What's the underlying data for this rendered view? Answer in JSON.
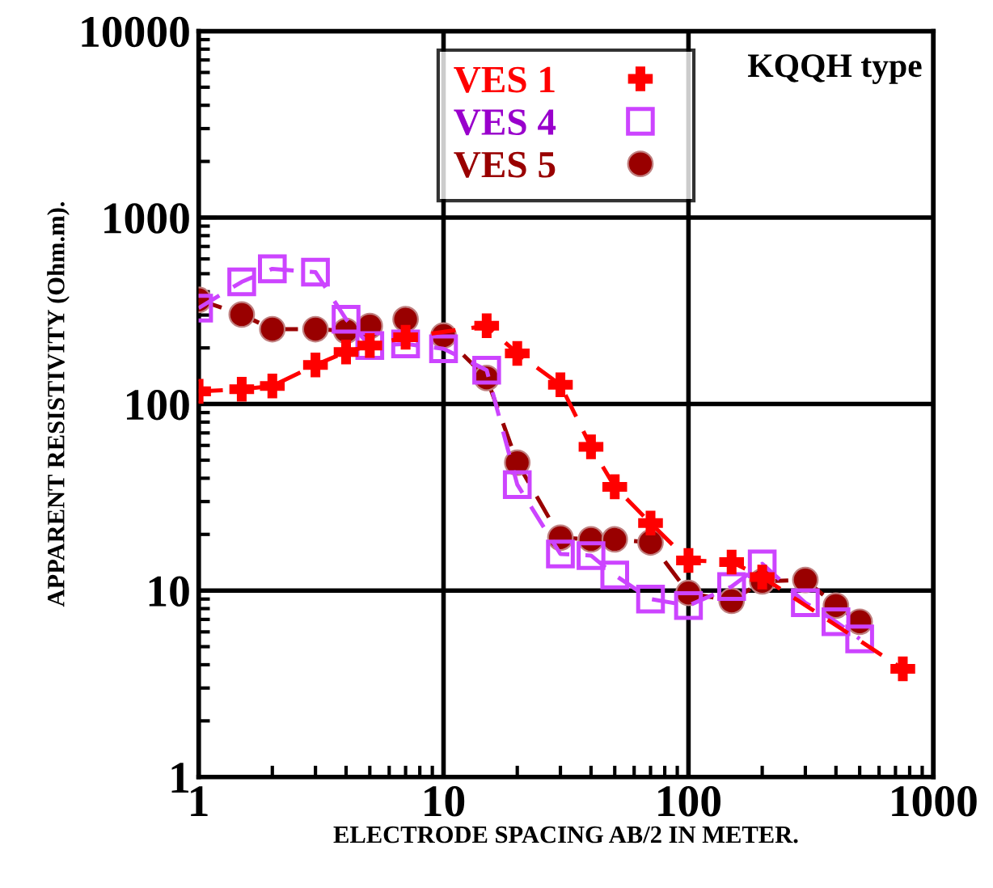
{
  "chart_data": {
    "type": "line",
    "xlabel": "ELECTRODE SPACING AB/2 IN METER.",
    "ylabel": "APPARENT RESISTIVITY (Ohm.m).",
    "log": "xy",
    "xlim": [
      1,
      1000
    ],
    "ylim": [
      1,
      10000
    ],
    "xticks": [
      1,
      10,
      100,
      1000
    ],
    "yticks": [
      1,
      10,
      100,
      1000,
      10000
    ],
    "grid": true,
    "legend": "top",
    "line_style": "dashed",
    "annotations": [
      "KQQH type"
    ],
    "series": [
      {
        "name": "VES 1",
        "color": "#ff0000",
        "marker": "cross",
        "x": [
          1,
          1.5,
          2,
          3,
          4,
          5,
          7,
          15,
          20,
          30,
          40,
          50,
          70,
          100,
          150,
          200,
          750
        ],
        "values": [
          117,
          120,
          125,
          162,
          190,
          206,
          228,
          263,
          187,
          127,
          59,
          36,
          23,
          14.5,
          14.2,
          11.8,
          3.8
        ]
      },
      {
        "name": "VES 4",
        "color": "#cc44ff",
        "marker": "square",
        "x": [
          1,
          1.5,
          2,
          3,
          4,
          5,
          7,
          10,
          15,
          20,
          30,
          40,
          50,
          70,
          100,
          150,
          200,
          300,
          400,
          500
        ],
        "values": [
          327,
          452,
          531,
          510,
          285,
          206,
          210,
          198,
          152,
          37,
          15.7,
          15.4,
          12.1,
          9.0,
          8.3,
          10.5,
          13.9,
          8.6,
          6.8,
          5.5
        ]
      },
      {
        "name": "VES 5",
        "color": "#990000",
        "marker": "circle",
        "x": [
          1,
          1.5,
          2,
          3,
          4,
          5,
          7,
          10,
          15,
          20,
          30,
          40,
          50,
          70,
          100,
          150,
          200,
          300,
          400,
          500
        ],
        "values": [
          362,
          302,
          252,
          252,
          247,
          262,
          285,
          233,
          138,
          48.5,
          19.2,
          18.8,
          18.8,
          18.1,
          9.7,
          8.8,
          11.2,
          11.4,
          8.3,
          6.8
        ]
      }
    ]
  }
}
